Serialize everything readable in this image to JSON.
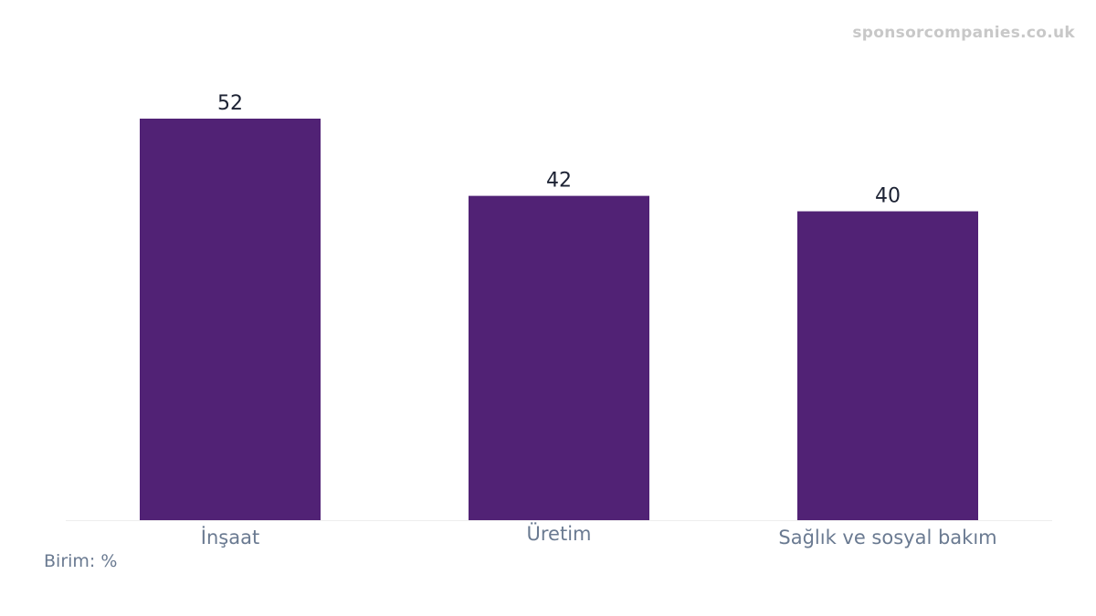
{
  "watermark": "sponsorcompanies.co.uk",
  "unit_note": "Birim: %",
  "colors": {
    "bar": "#512275",
    "value_label": "#1c2233",
    "tick_label": "#6a7a91",
    "axis": "#eeeeee"
  },
  "chart_data": {
    "type": "bar",
    "categories": [
      "İnşaat",
      "Üretim",
      "Sağlık ve sosyal bakım"
    ],
    "values": [
      52,
      42,
      40
    ],
    "title": "",
    "xlabel": "",
    "ylabel": "",
    "ylim": [
      0,
      52
    ],
    "grid": false,
    "legend": "none"
  }
}
